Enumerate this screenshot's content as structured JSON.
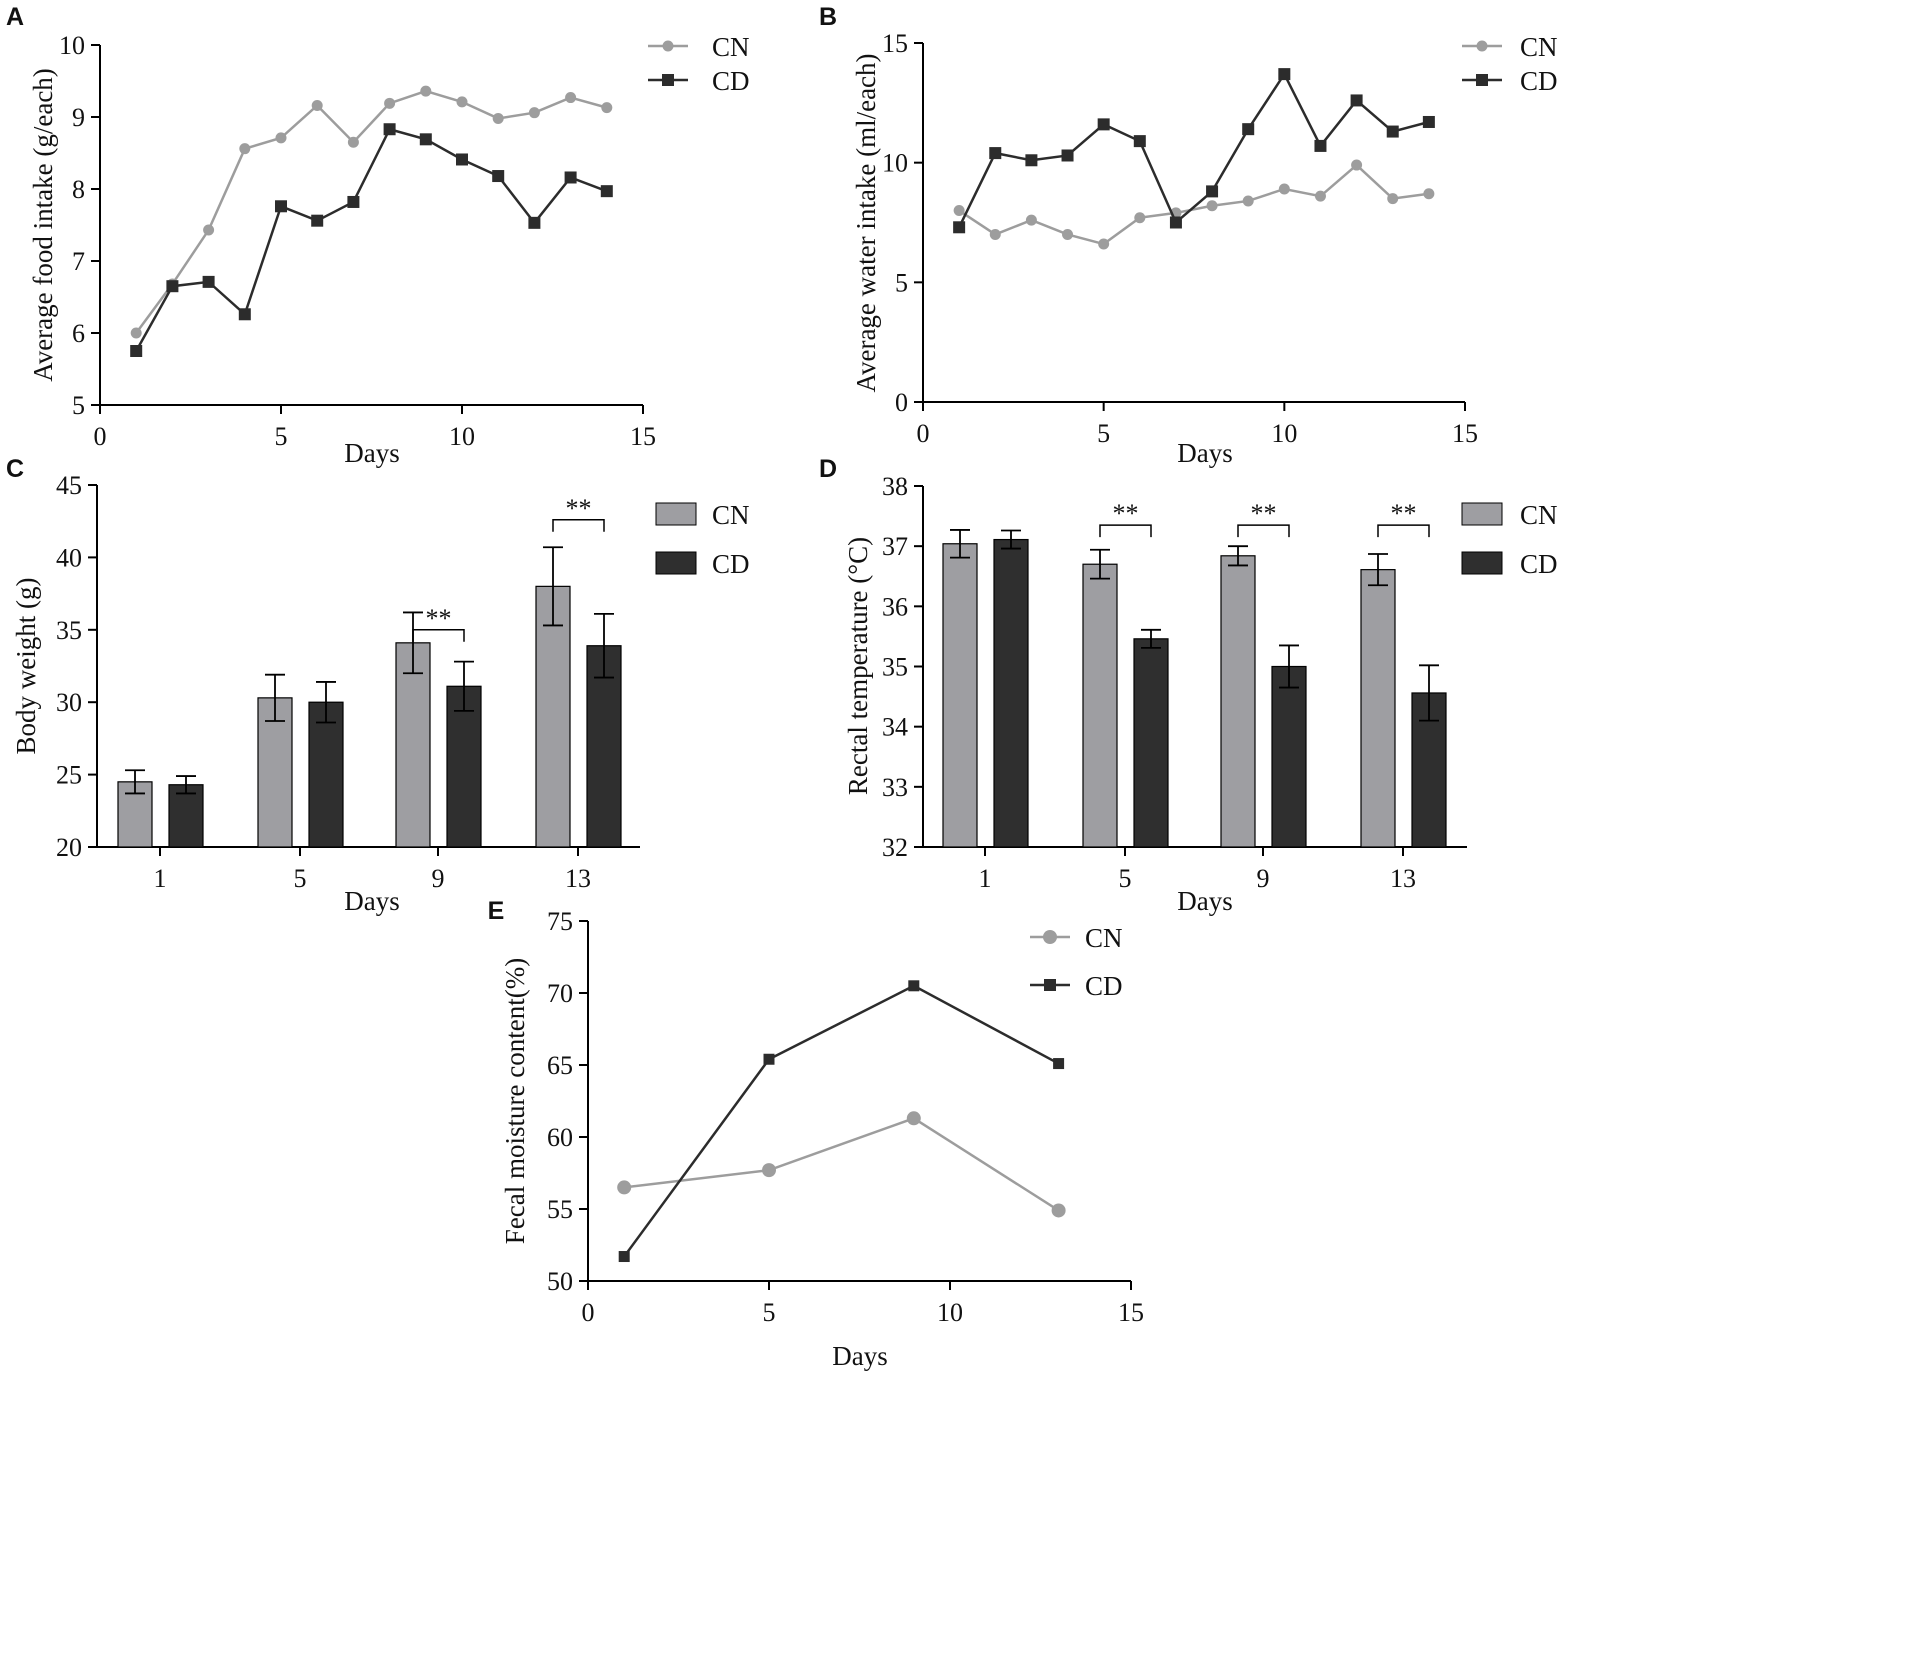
{
  "colors": {
    "cn": "#9d9d9d",
    "cd": "#2c2c2c",
    "cn_bar": "#9e9ea2",
    "cd_bar": "#2f2f2f",
    "axis": "#000000"
  },
  "chart_data": [
    {
      "panel": "A",
      "type": "line",
      "xlabel": "Days",
      "ylabel": "Average food intake (g/each)",
      "xlim": [
        0,
        15
      ],
      "ylim": [
        5,
        10
      ],
      "xticks": [
        0,
        5,
        10,
        15
      ],
      "yticks": [
        5,
        6,
        7,
        8,
        9,
        10
      ],
      "ytick_labels": [
        "5",
        "6",
        "7",
        "8",
        "9",
        "10"
      ],
      "legend": "top-right",
      "series": [
        {
          "name": "CN",
          "marker": "circle",
          "x": [
            1,
            2,
            3,
            4,
            5,
            6,
            7,
            8,
            9,
            10,
            11,
            12,
            13,
            14
          ],
          "values": [
            6.0,
            6.68,
            7.43,
            8.56,
            8.71,
            9.16,
            8.65,
            9.19,
            9.36,
            9.21,
            8.98,
            9.06,
            9.27,
            9.13
          ]
        },
        {
          "name": "CD",
          "marker": "square",
          "x": [
            1,
            2,
            3,
            4,
            5,
            6,
            7,
            8,
            9,
            10,
            11,
            12,
            13,
            14
          ],
          "values": [
            5.75,
            6.65,
            6.71,
            6.26,
            7.76,
            7.56,
            7.82,
            8.83,
            8.69,
            8.41,
            8.18,
            7.53,
            8.16,
            7.97
          ]
        }
      ]
    },
    {
      "panel": "B",
      "type": "line",
      "xlabel": "Days",
      "ylabel": "Average water intake (ml/each)",
      "xlim": [
        0,
        15
      ],
      "ylim": [
        0,
        15
      ],
      "xticks": [
        0,
        5,
        10,
        15
      ],
      "yticks": [
        0,
        5,
        10,
        15
      ],
      "ytick_labels": [
        "0",
        "5",
        "10",
        "15"
      ],
      "legend": "top-right",
      "series": [
        {
          "name": "CN",
          "marker": "circle",
          "x": [
            1,
            2,
            3,
            4,
            5,
            6,
            7,
            8,
            9,
            10,
            11,
            12,
            13,
            14
          ],
          "values": [
            8.0,
            7.0,
            7.6,
            7.0,
            6.6,
            7.7,
            7.9,
            8.2,
            8.4,
            8.9,
            8.6,
            9.9,
            8.5,
            8.7
          ]
        },
        {
          "name": "CD",
          "marker": "square",
          "x": [
            1,
            2,
            3,
            4,
            5,
            6,
            7,
            8,
            9,
            10,
            11,
            12,
            13,
            14
          ],
          "values": [
            7.3,
            10.4,
            10.1,
            10.3,
            11.6,
            10.9,
            7.5,
            8.8,
            11.4,
            13.7,
            10.7,
            12.6,
            11.3,
            11.7
          ]
        }
      ]
    },
    {
      "panel": "C",
      "type": "bar",
      "xlabel": "Days",
      "ylabel": "Body weight (g)",
      "categories": [
        "1",
        "5",
        "9",
        "13"
      ],
      "ylim": [
        20,
        45
      ],
      "yticks": [
        20,
        25,
        30,
        35,
        40,
        45
      ],
      "ytick_labels": [
        "20",
        "25",
        "30",
        "35",
        "40",
        "45"
      ],
      "legend": "top-right",
      "series": [
        {
          "name": "CN",
          "values": [
            24.5,
            30.3,
            34.1,
            38.0
          ],
          "errors": [
            0.8,
            1.6,
            2.1,
            2.7
          ]
        },
        {
          "name": "CD",
          "values": [
            24.3,
            30.0,
            31.1,
            33.9
          ],
          "errors": [
            0.6,
            1.4,
            1.7,
            2.2
          ]
        }
      ],
      "significance": [
        {
          "category": "9",
          "label": "**",
          "level": 35.0
        },
        {
          "category": "13",
          "label": "**",
          "level": 42.6
        }
      ]
    },
    {
      "panel": "D",
      "type": "bar",
      "xlabel": "Days",
      "ylabel": "Rectal temperature (°C)",
      "categories": [
        "1",
        "5",
        "9",
        "13"
      ],
      "ylim": [
        32,
        38
      ],
      "yticks": [
        32,
        33,
        34,
        35,
        36,
        37,
        38
      ],
      "ytick_labels": [
        "32",
        "33",
        "34",
        "35",
        "36",
        "37",
        "38"
      ],
      "legend": "top-right",
      "series": [
        {
          "name": "CN",
          "values": [
            37.04,
            36.7,
            36.84,
            36.61
          ],
          "errors": [
            0.23,
            0.24,
            0.16,
            0.26
          ]
        },
        {
          "name": "CD",
          "values": [
            37.11,
            35.46,
            35.0,
            34.56
          ],
          "errors": [
            0.15,
            0.15,
            0.35,
            0.46
          ]
        }
      ],
      "significance": [
        {
          "category": "5",
          "label": "**",
          "level": 37.35
        },
        {
          "category": "9",
          "label": "**",
          "level": 37.35
        },
        {
          "category": "13",
          "label": "**",
          "level": 37.35
        }
      ]
    },
    {
      "panel": "E",
      "type": "line",
      "xlabel": "Days",
      "ylabel": "Fecal moisture content(%)",
      "xlim": [
        0,
        15
      ],
      "ylim": [
        50,
        75
      ],
      "xticks": [
        0,
        5,
        10,
        15
      ],
      "yticks": [
        50,
        55,
        60,
        65,
        70,
        75
      ],
      "ytick_labels": [
        "50",
        "55",
        "60",
        "65",
        "70",
        "75"
      ],
      "legend": "top-right",
      "series": [
        {
          "name": "CN",
          "marker": "circle",
          "x": [
            1,
            5,
            9,
            13
          ],
          "values": [
            56.5,
            57.7,
            61.3,
            54.9
          ]
        },
        {
          "name": "CD",
          "marker": "square",
          "x": [
            1,
            5,
            9,
            13
          ],
          "values": [
            51.7,
            65.4,
            70.5,
            65.1
          ]
        }
      ]
    }
  ]
}
